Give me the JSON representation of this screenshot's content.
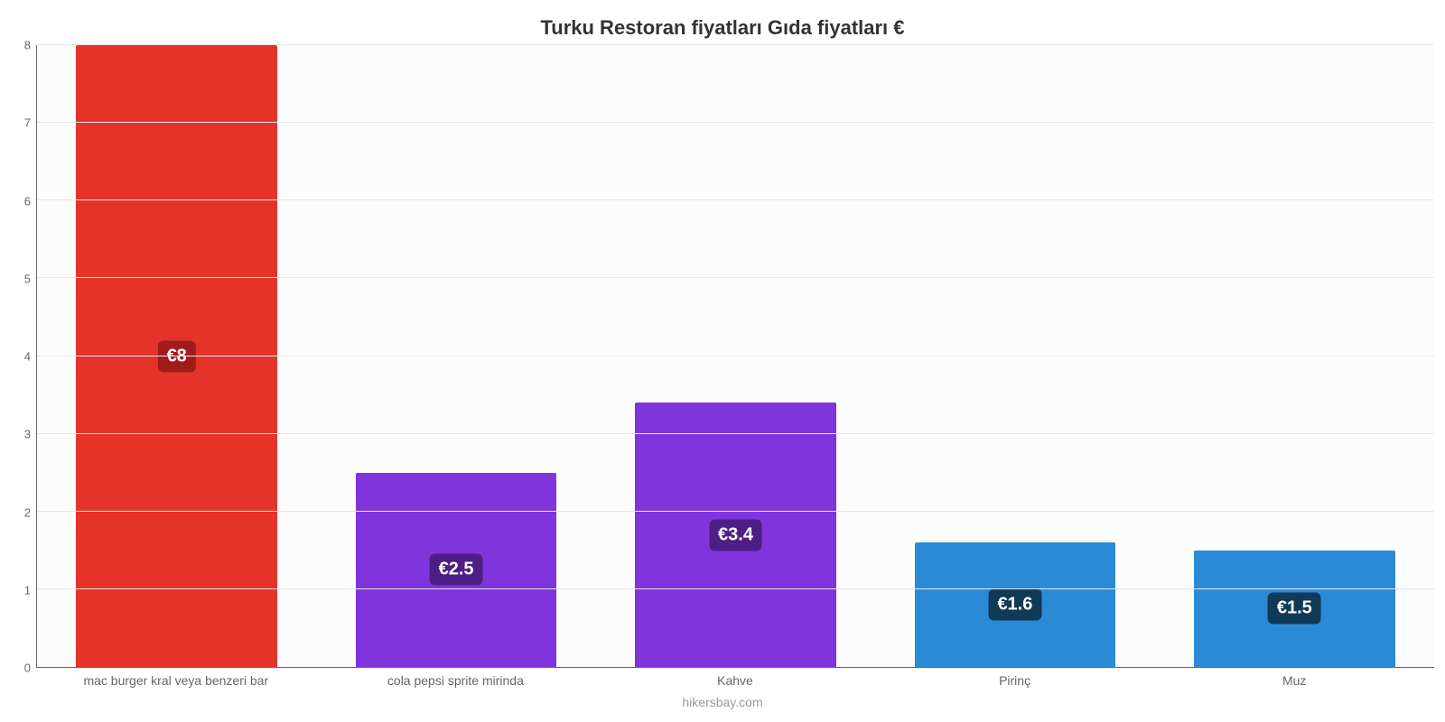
{
  "chart": {
    "type": "bar",
    "title": "Turku Restoran fiyatları Gıda fiyatları €",
    "title_fontsize": 22,
    "title_color": "#333333",
    "footer": "hikersbay.com",
    "footer_color": "#999999",
    "background_color": "#ffffff",
    "plot_background_color": "#fcfcfc",
    "grid_color": "#e6e6e6",
    "axis_color": "#666666",
    "y": {
      "min": 0,
      "max": 8,
      "ticks": [
        0,
        1,
        2,
        3,
        4,
        5,
        6,
        7,
        8
      ],
      "tick_fontsize": 13,
      "tick_color": "#666666"
    },
    "x_label_fontsize": 14,
    "x_label_color": "#666666",
    "bar_width_pct": 72,
    "value_badge_fontsize": 20,
    "bars": [
      {
        "category": "mac burger kral veya benzeri bar",
        "value": 8,
        "value_label": "€8",
        "bar_color": "#e6332a",
        "badge_bg": "#a01c1c"
      },
      {
        "category": "cola pepsi sprite mirinda",
        "value": 2.5,
        "value_label": "€2.5",
        "bar_color": "#8034dc",
        "badge_bg": "#4d1f85"
      },
      {
        "category": "Kahve",
        "value": 3.4,
        "value_label": "€3.4",
        "bar_color": "#8034dc",
        "badge_bg": "#4d1f85"
      },
      {
        "category": "Pirinç",
        "value": 1.6,
        "value_label": "€1.6",
        "bar_color": "#2b8ad6",
        "badge_bg": "#113a56"
      },
      {
        "category": "Muz",
        "value": 1.5,
        "value_label": "€1.5",
        "bar_color": "#2b8ad6",
        "badge_bg": "#113a56"
      }
    ]
  }
}
